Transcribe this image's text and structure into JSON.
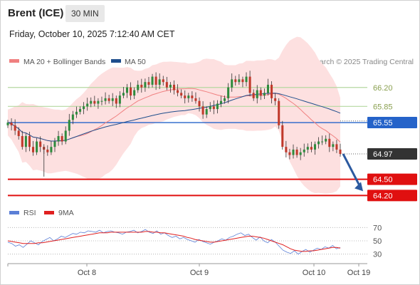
{
  "header": {
    "title": "Brent (ICE)",
    "interval": "30 MIN",
    "datetime": "Friday, October 10, 2025 7:12:40 AM CET"
  },
  "legend": {
    "ma20_bb": "MA 20 + Bollinger Bands",
    "ma50": "MA 50",
    "credit": "Research © 2025 Trading Central",
    "rsi": "RSI",
    "ma9": "9MA"
  },
  "colors": {
    "ma20": "#f08080",
    "bollinger_fill": "#fde0e0",
    "ma50": "#1f4e8c",
    "rsi": "#5b7fd6",
    "ma9": "#e02020",
    "candle_up": "#2e8b3d",
    "candle_down": "#c0392b",
    "support": "#e01010",
    "pivot": "#2563c9",
    "resistance": "#b5d8a0",
    "last_price": "#333333",
    "arrow": "#2c5aa0"
  },
  "chart_data": [
    {
      "type": "candlestick",
      "x_labels": [
        "Oct 8",
        "Oct 9",
        "Oct 10",
        "Oct 19"
      ],
      "ylim": [
        64.1,
        66.5
      ],
      "levels": [
        {
          "value": 66.2,
          "label": "66.20",
          "kind": "resistance"
        },
        {
          "value": 65.85,
          "label": "65.85",
          "kind": "resistance"
        },
        {
          "value": 65.55,
          "label": "65.55",
          "kind": "pivot"
        },
        {
          "value": 64.97,
          "label": "64.97",
          "kind": "last"
        },
        {
          "value": 64.5,
          "label": "64.50",
          "kind": "support"
        },
        {
          "value": 64.2,
          "label": "64.20",
          "kind": "support"
        }
      ],
      "close": [
        65.55,
        65.5,
        65.4,
        65.3,
        65.1,
        65.3,
        65.1,
        65.0,
        65.2,
        65.1,
        65.05,
        65.0,
        65.1,
        65.2,
        65.3,
        65.2,
        65.4,
        65.6,
        65.7,
        65.75,
        65.8,
        65.85,
        65.9,
        65.95,
        65.9,
        65.95,
        65.95,
        66.0,
        65.95,
        66.0,
        65.9,
        66.05,
        66.1,
        66.2,
        66.05,
        66.15,
        66.25,
        66.2,
        66.3,
        66.25,
        66.4,
        66.25,
        66.35,
        66.3,
        66.2,
        66.25,
        66.15,
        66.1,
        66.05,
        66.0,
        66.05,
        66.0,
        65.95,
        65.85,
        65.7,
        65.8,
        65.85,
        65.8,
        65.9,
        65.95,
        66.0,
        66.2,
        66.35,
        66.3,
        66.35,
        66.3,
        66.4,
        66.1,
        66.0,
        66.15,
        66.05,
        66.1,
        66.25,
        66.0,
        65.95,
        65.5,
        65.1,
        65.0,
        64.95,
        65.05,
        64.95,
        65.0,
        65.05,
        65.1,
        65.05,
        65.15,
        65.2,
        65.2,
        65.25,
        65.1,
        65.15,
        65.05,
        64.97
      ]
    },
    {
      "type": "line",
      "x_labels": [
        "Oct 8",
        "Oct 9",
        "Oct 10",
        "Oct 19"
      ],
      "ylim": [
        20,
        80
      ],
      "y_ticks": [
        70,
        50,
        30
      ],
      "series": [
        {
          "name": "RSI",
          "values": [
            48,
            46,
            42,
            44,
            40,
            45,
            50,
            47,
            44,
            49,
            52,
            55,
            50,
            53,
            57,
            55,
            58,
            61,
            60,
            63,
            62,
            65,
            64,
            63,
            66,
            62,
            64,
            65,
            63,
            62,
            60,
            63,
            64,
            66,
            62,
            64,
            67,
            63,
            61,
            65,
            60,
            62,
            58,
            55,
            57,
            53,
            55,
            52,
            50,
            48,
            52,
            49,
            47,
            45,
            48,
            50,
            53,
            51,
            55,
            57,
            60,
            62,
            58,
            60,
            55,
            51,
            56,
            50,
            47,
            52,
            48,
            42,
            36,
            33,
            31,
            35,
            30,
            34,
            37,
            33,
            36,
            39,
            37,
            41,
            39,
            43,
            38,
            40
          ]
        },
        {
          "name": "9MA",
          "values": [
            50,
            49,
            48,
            47,
            46,
            46,
            46,
            46,
            47,
            47,
            48,
            49,
            50,
            51,
            52,
            53,
            54,
            55,
            56,
            57,
            58,
            59,
            60,
            61,
            62,
            62,
            62,
            63,
            63,
            63,
            63,
            63,
            63,
            63,
            63,
            63,
            64,
            64,
            63,
            63,
            62,
            62,
            61,
            60,
            59,
            58,
            57,
            55,
            54,
            52,
            51,
            50,
            49,
            48,
            48,
            49,
            50,
            51,
            52,
            53,
            54,
            55,
            56,
            57,
            57,
            56,
            55,
            54,
            52,
            50,
            48,
            46,
            44,
            41,
            38,
            36,
            35,
            34,
            34,
            35,
            35,
            36,
            37,
            38,
            39,
            40,
            40,
            39
          ]
        }
      ]
    }
  ]
}
